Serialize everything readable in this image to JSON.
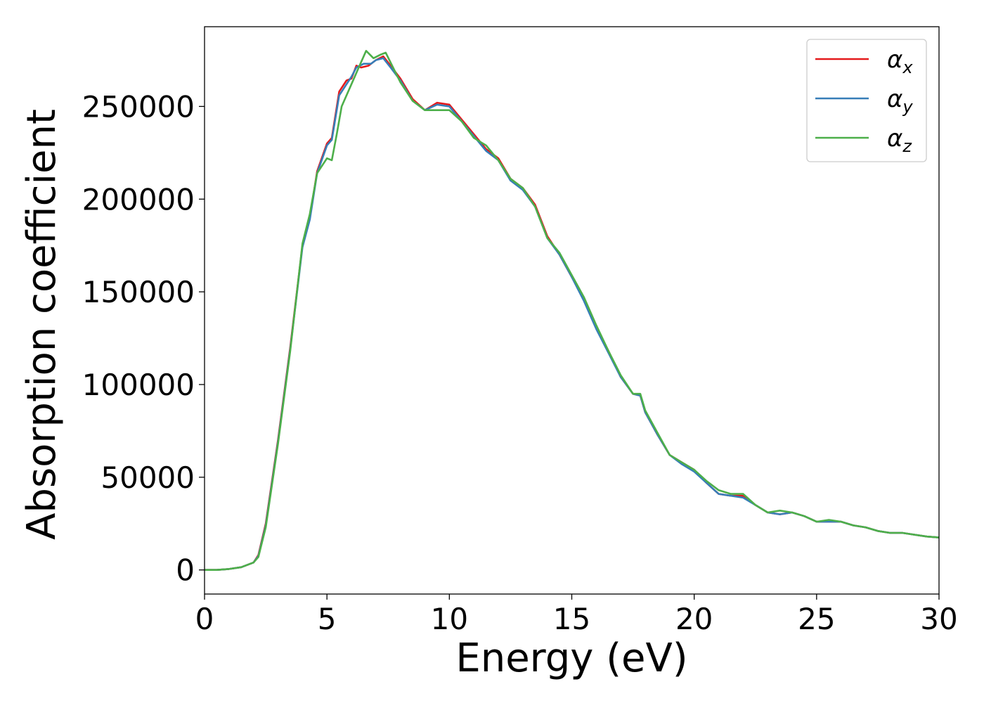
{
  "chart_data": {
    "type": "line",
    "title": "",
    "xlabel": "Energy (eV)",
    "ylabel": "Absorption coefficient",
    "xlim": [
      0,
      30
    ],
    "ylim": [
      -13000,
      293000
    ],
    "xticks": [
      0,
      5,
      10,
      15,
      20,
      25,
      30
    ],
    "yticks": [
      0,
      50000,
      100000,
      150000,
      200000,
      250000
    ],
    "grid": false,
    "legend_position": "top-right",
    "colors": {
      "alpha_x": "#e41a1c",
      "alpha_y": "#377eb8",
      "alpha_z": "#4daf4a"
    },
    "series": [
      {
        "name": "α",
        "sub": "x",
        "color": "#e41a1c",
        "points": [
          [
            0,
            0
          ],
          [
            0.5,
            0
          ],
          [
            1,
            500
          ],
          [
            1.5,
            1500
          ],
          [
            2,
            4000
          ],
          [
            2.2,
            8000
          ],
          [
            2.5,
            25000
          ],
          [
            3,
            70000
          ],
          [
            3.5,
            120000
          ],
          [
            4,
            175000
          ],
          [
            4.3,
            190000
          ],
          [
            4.6,
            215000
          ],
          [
            5,
            230000
          ],
          [
            5.2,
            233000
          ],
          [
            5.5,
            258000
          ],
          [
            5.8,
            264000
          ],
          [
            6,
            265000
          ],
          [
            6.2,
            272000
          ],
          [
            6.4,
            271000
          ],
          [
            6.7,
            272000
          ],
          [
            7,
            275000
          ],
          [
            7.3,
            277000
          ],
          [
            7.6,
            272000
          ],
          [
            8,
            265000
          ],
          [
            8.5,
            254000
          ],
          [
            9,
            248000
          ],
          [
            9.5,
            252000
          ],
          [
            10,
            251000
          ],
          [
            10.5,
            243000
          ],
          [
            11,
            235000
          ],
          [
            11.5,
            227000
          ],
          [
            12,
            222000
          ],
          [
            12.5,
            211000
          ],
          [
            13,
            206000
          ],
          [
            13.5,
            197000
          ],
          [
            14,
            180000
          ],
          [
            14.5,
            170000
          ],
          [
            15,
            158000
          ],
          [
            15.5,
            146000
          ],
          [
            16,
            131000
          ],
          [
            16.5,
            118000
          ],
          [
            17,
            104000
          ],
          [
            17.5,
            95000
          ],
          [
            17.8,
            94000
          ],
          [
            18,
            85000
          ],
          [
            18.5,
            73000
          ],
          [
            19,
            62000
          ],
          [
            19.5,
            58000
          ],
          [
            20,
            54000
          ],
          [
            20.5,
            47000
          ],
          [
            21,
            41000
          ],
          [
            21.5,
            40000
          ],
          [
            22,
            40000
          ],
          [
            22.5,
            35000
          ],
          [
            23,
            31000
          ],
          [
            23.5,
            30000
          ],
          [
            24,
            31000
          ],
          [
            24.5,
            29000
          ],
          [
            25,
            26000
          ],
          [
            25.5,
            26000
          ],
          [
            26,
            26000
          ],
          [
            26.5,
            24000
          ],
          [
            27,
            23000
          ],
          [
            27.5,
            21000
          ],
          [
            28,
            20000
          ],
          [
            28.5,
            20000
          ],
          [
            29,
            19000
          ],
          [
            29.5,
            18000
          ],
          [
            30,
            17500
          ]
        ]
      },
      {
        "name": "α",
        "sub": "y",
        "color": "#377eb8",
        "points": [
          [
            0,
            0
          ],
          [
            0.5,
            0
          ],
          [
            1,
            500
          ],
          [
            1.5,
            1500
          ],
          [
            2,
            4000
          ],
          [
            2.2,
            7500
          ],
          [
            2.5,
            24000
          ],
          [
            3,
            69000
          ],
          [
            3.5,
            119000
          ],
          [
            4,
            174000
          ],
          [
            4.3,
            189000
          ],
          [
            4.6,
            214000
          ],
          [
            5,
            229000
          ],
          [
            5.2,
            232000
          ],
          [
            5.5,
            256000
          ],
          [
            5.8,
            262000
          ],
          [
            6,
            266000
          ],
          [
            6.2,
            271000
          ],
          [
            6.5,
            273000
          ],
          [
            6.8,
            273000
          ],
          [
            7,
            275000
          ],
          [
            7.3,
            276000
          ],
          [
            7.6,
            271000
          ],
          [
            8,
            264000
          ],
          [
            8.5,
            253000
          ],
          [
            9,
            248000
          ],
          [
            9.5,
            251000
          ],
          [
            10,
            250000
          ],
          [
            10.5,
            242000
          ],
          [
            11,
            234000
          ],
          [
            11.5,
            226000
          ],
          [
            12,
            221000
          ],
          [
            12.5,
            210000
          ],
          [
            13,
            205000
          ],
          [
            13.5,
            196000
          ],
          [
            14,
            179000
          ],
          [
            14.5,
            170000
          ],
          [
            15,
            158000
          ],
          [
            15.5,
            145000
          ],
          [
            16,
            130000
          ],
          [
            16.5,
            117000
          ],
          [
            17,
            104000
          ],
          [
            17.5,
            95000
          ],
          [
            17.8,
            94000
          ],
          [
            18,
            85000
          ],
          [
            18.5,
            73000
          ],
          [
            19,
            62000
          ],
          [
            19.5,
            57000
          ],
          [
            20,
            53000
          ],
          [
            20.5,
            47000
          ],
          [
            21,
            41000
          ],
          [
            21.5,
            40000
          ],
          [
            22,
            39000
          ],
          [
            22.5,
            35000
          ],
          [
            23,
            31000
          ],
          [
            23.5,
            30000
          ],
          [
            24,
            31000
          ],
          [
            24.5,
            29000
          ],
          [
            25,
            26000
          ],
          [
            25.5,
            26000
          ],
          [
            26,
            26000
          ],
          [
            26.5,
            24000
          ],
          [
            27,
            23000
          ],
          [
            27.5,
            21000
          ],
          [
            28,
            20000
          ],
          [
            28.5,
            20000
          ],
          [
            29,
            19000
          ],
          [
            29.5,
            18000
          ],
          [
            30,
            17500
          ]
        ]
      },
      {
        "name": "α",
        "sub": "z",
        "color": "#4daf4a",
        "points": [
          [
            0,
            0
          ],
          [
            0.5,
            0
          ],
          [
            1,
            500
          ],
          [
            1.5,
            1500
          ],
          [
            2,
            4000
          ],
          [
            2.2,
            7000
          ],
          [
            2.5,
            23000
          ],
          [
            3,
            68000
          ],
          [
            3.5,
            118000
          ],
          [
            4,
            176000
          ],
          [
            4.3,
            192000
          ],
          [
            4.6,
            214000
          ],
          [
            5,
            222000
          ],
          [
            5.2,
            221000
          ],
          [
            5.4,
            235000
          ],
          [
            5.6,
            250000
          ],
          [
            6,
            262000
          ],
          [
            6.3,
            271000
          ],
          [
            6.6,
            280000
          ],
          [
            6.9,
            276000
          ],
          [
            7.2,
            278000
          ],
          [
            7.4,
            279000
          ],
          [
            7.7,
            271000
          ],
          [
            8,
            263000
          ],
          [
            8.5,
            253000
          ],
          [
            9,
            248000
          ],
          [
            9.5,
            248000
          ],
          [
            10,
            248000
          ],
          [
            10.5,
            242000
          ],
          [
            11,
            233000
          ],
          [
            11.5,
            229000
          ],
          [
            12,
            221000
          ],
          [
            12.5,
            211000
          ],
          [
            13,
            206000
          ],
          [
            13.5,
            196000
          ],
          [
            14,
            179000
          ],
          [
            14.5,
            171000
          ],
          [
            15,
            159000
          ],
          [
            15.5,
            147000
          ],
          [
            16,
            132000
          ],
          [
            16.5,
            118000
          ],
          [
            17,
            105000
          ],
          [
            17.5,
            95000
          ],
          [
            17.8,
            95000
          ],
          [
            18,
            86000
          ],
          [
            18.5,
            74000
          ],
          [
            19,
            62000
          ],
          [
            19.5,
            58000
          ],
          [
            20,
            54000
          ],
          [
            20.5,
            48000
          ],
          [
            21,
            43000
          ],
          [
            21.5,
            41000
          ],
          [
            22,
            41000
          ],
          [
            22.5,
            35000
          ],
          [
            23,
            31000
          ],
          [
            23.5,
            32000
          ],
          [
            24,
            31000
          ],
          [
            24.5,
            29000
          ],
          [
            25,
            26000
          ],
          [
            25.5,
            27000
          ],
          [
            26,
            26000
          ],
          [
            26.5,
            24000
          ],
          [
            27,
            23000
          ],
          [
            27.5,
            21000
          ],
          [
            28,
            20000
          ],
          [
            28.5,
            20000
          ],
          [
            29,
            19000
          ],
          [
            29.5,
            18000
          ],
          [
            30,
            17500
          ]
        ]
      }
    ]
  }
}
